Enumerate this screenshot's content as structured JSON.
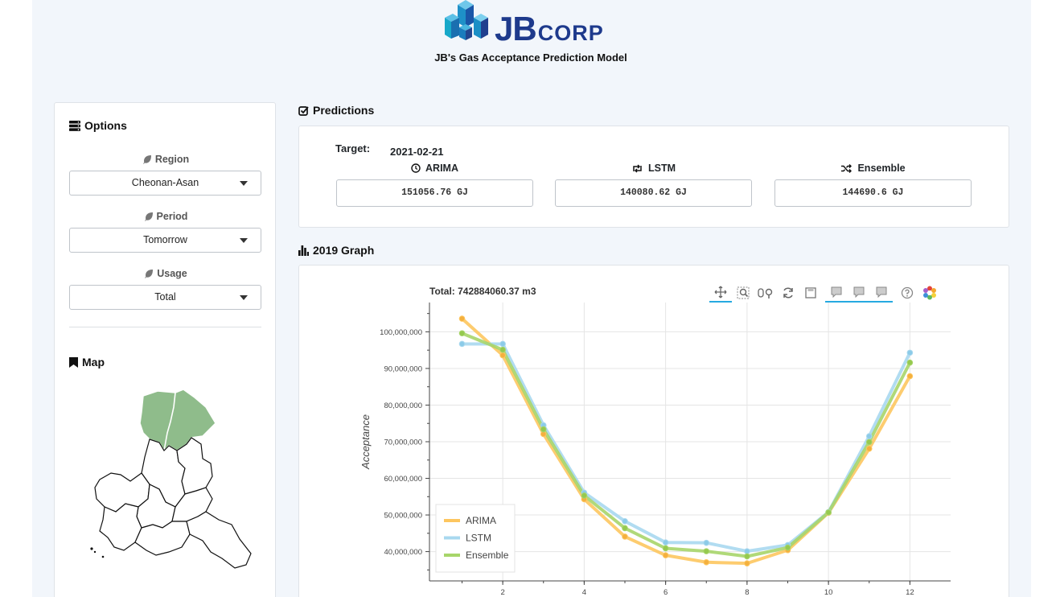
{
  "header": {
    "logo_main": "JB",
    "logo_sub": "CORP",
    "app_title": "JB's Gas Acceptance Prediction Model"
  },
  "options": {
    "title": "Options",
    "region": {
      "label": "Region",
      "value": "Cheonan-Asan"
    },
    "period": {
      "label": "Period",
      "value": "Tomorrow"
    },
    "usage": {
      "label": "Usage",
      "value": "Total"
    },
    "map_title": "Map"
  },
  "predictions": {
    "title": "Predictions",
    "target_label": "Target:",
    "target_date": "2021-02-21",
    "models": [
      {
        "name": "ARIMA",
        "icon": "clock-icon",
        "value": "151056.76 GJ"
      },
      {
        "name": "LSTM",
        "icon": "retweet-icon",
        "value": "140080.62 GJ"
      },
      {
        "name": "Ensemble",
        "icon": "shuffle-icon",
        "value": "144690.6 GJ"
      }
    ]
  },
  "graph": {
    "title": "2019 Graph",
    "total_label": "Total:  742884060.37 m3",
    "toolbar": [
      "pan-tool-icon",
      "box-zoom-icon",
      "wheel-zoom-icon",
      "reset-icon",
      "save-icon",
      "hover-icon",
      "hover-icon",
      "hover-icon",
      "help-icon",
      "bokeh-logo-icon"
    ]
  },
  "colors": {
    "arima": "#fdc65f",
    "lstm": "#a8d8ef",
    "ensemble": "#a7d56a",
    "map_fill": "#8fbc8b",
    "accent": "#26aae1"
  },
  "chart_data": {
    "type": "line",
    "title": "",
    "xlabel": "",
    "ylabel": "Acceptance",
    "x": [
      1,
      2,
      3,
      4,
      5,
      6,
      7,
      8,
      9,
      10,
      11,
      12
    ],
    "xticks": [
      2,
      4,
      6,
      8,
      10,
      12
    ],
    "yticks": [
      "100,000,000",
      "90,000,000",
      "80,000,000",
      "70,000,000",
      "60,000,000",
      "50,000,000",
      "40,000,000"
    ],
    "ytick_values": [
      100000000,
      90000000,
      80000000,
      70000000,
      60000000,
      50000000,
      40000000
    ],
    "ylim": [
      32000000,
      108000000
    ],
    "xlim": [
      0.2,
      13.0
    ],
    "grid": true,
    "legend_position": "bottom-left",
    "series": [
      {
        "name": "ARIMA",
        "values": [
          103600000,
          93600000,
          72100000,
          54300000,
          44100000,
          39000000,
          37100000,
          36800000,
          40400000,
          50600000,
          68100000,
          87900000
        ]
      },
      {
        "name": "LSTM",
        "values": [
          96700000,
          96700000,
          74500000,
          56100000,
          48300000,
          42500000,
          42400000,
          40100000,
          41800000,
          50800000,
          71500000,
          94300000
        ]
      },
      {
        "name": "Ensemble",
        "values": [
          99600000,
          95100000,
          73400000,
          55300000,
          46400000,
          40900000,
          40100000,
          38700000,
          41100000,
          50700000,
          69900000,
          91600000
        ]
      }
    ]
  }
}
